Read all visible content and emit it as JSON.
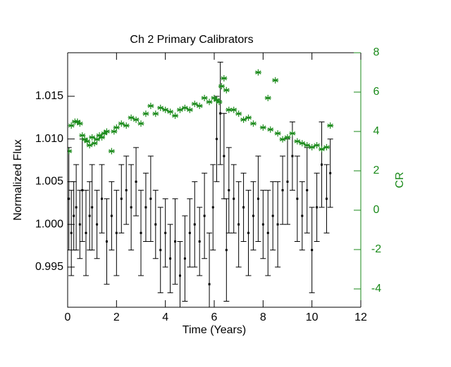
{
  "chart_data": {
    "type": "scatter",
    "title": "Ch 2 Primary Calibrators",
    "xlabel": "Time (Years)",
    "ylabel": "Normalized Flux",
    "y2label": "CR",
    "xlim": [
      0,
      12
    ],
    "xticks": [
      0,
      2,
      4,
      6,
      8,
      10,
      12
    ],
    "ylim": [
      0.9903,
      1.0201
    ],
    "yticks": [
      0.995,
      {
        "value": 1,
        "label": "1.000"
      },
      1.005,
      {
        "value": 1.01,
        "label": "1.010"
      },
      1.015
    ],
    "y2lim": [
      -4.93,
      8
    ],
    "y2ticks": [
      -4,
      -2,
      0,
      2,
      4,
      6,
      8
    ],
    "y2color": "#1a8a1a",
    "series": [
      {
        "color": "#000000",
        "marker": "dot",
        "x": [
          0.05,
          0.15,
          0.25,
          0.35,
          0.5,
          0.6,
          0.75,
          0.9,
          1.0,
          1.2,
          1.4,
          1.6,
          1.8,
          2.0,
          2.2,
          2.4,
          2.6,
          2.8,
          3.0,
          3.2,
          3.4,
          3.6,
          3.8,
          4.0,
          4.2,
          4.4,
          4.6,
          4.8,
          5.0,
          5.2,
          5.4,
          5.6,
          5.8,
          5.95,
          6.1,
          6.25,
          6.4,
          6.5,
          6.6,
          6.8,
          7.0,
          7.2,
          7.4,
          7.6,
          7.8,
          8.0,
          8.2,
          8.4,
          8.6,
          8.8,
          9.0,
          9.2,
          9.4,
          9.6,
          9.8,
          10.0,
          10.2,
          10.4,
          10.6,
          10.75
        ],
        "values": [
          1.003,
          0.999,
          1.001,
          1.002,
          1.0,
          1.004,
          0.999,
          1.001,
          1.002,
          1.0,
          1.003,
          0.998,
          1.001,
          0.999,
          1.003,
          1.004,
          1.002,
          1.005,
          0.999,
          1.002,
          1.003,
          1.0,
          0.997,
          0.999,
          0.996,
          0.998,
          0.994,
          0.996,
          0.999,
          1.0,
          0.998,
          1.001,
          0.993,
          1.002,
          1.01,
          1.013,
          1.008,
          0.997,
          1.004,
          1.003,
          1.0,
          1.002,
          0.999,
          1.001,
          1.003,
          1.0,
          0.999,
          1.001,
          1.0,
          1.004,
          1.005,
          1.008,
          1.003,
          1.001,
          1.004,
          0.997,
          1.002,
          1.007,
          1.003,
          1.006
        ],
        "errors": [
          0.006,
          0.005,
          0.004,
          0.005,
          0.004,
          0.006,
          0.005,
          0.004,
          0.005,
          0.004,
          0.004,
          0.005,
          0.004,
          0.005,
          0.004,
          0.004,
          0.005,
          0.004,
          0.005,
          0.004,
          0.005,
          0.004,
          0.005,
          0.004,
          0.004,
          0.005,
          0.004,
          0.005,
          0.004,
          0.005,
          0.004,
          0.005,
          0.006,
          0.005,
          0.005,
          0.006,
          0.005,
          0.006,
          0.005,
          0.004,
          0.005,
          0.004,
          0.005,
          0.004,
          0.005,
          0.004,
          0.005,
          0.004,
          0.005,
          0.004,
          0.005,
          0.004,
          0.005,
          0.004,
          0.005,
          0.005,
          0.004,
          0.005,
          0.004,
          0.004
        ]
      },
      {
        "color": "#1a8a1a",
        "marker": "star",
        "axis": "y2",
        "x": [
          0.05,
          0.15,
          0.3,
          0.4,
          0.5,
          0.6,
          0.7,
          0.8,
          0.9,
          1.0,
          1.1,
          1.2,
          1.3,
          1.4,
          1.5,
          1.6,
          1.8,
          1.9,
          2.0,
          2.2,
          2.4,
          2.6,
          2.8,
          3.0,
          3.2,
          3.4,
          3.6,
          3.8,
          4.0,
          4.2,
          4.4,
          4.6,
          4.8,
          5.0,
          5.2,
          5.4,
          5.6,
          5.8,
          6.0,
          6.1,
          6.2,
          6.3,
          6.4,
          6.5,
          6.6,
          6.8,
          7.0,
          7.2,
          7.4,
          7.6,
          7.8,
          8.0,
          8.2,
          8.3,
          8.5,
          8.6,
          8.8,
          9.0,
          9.2,
          9.4,
          9.6,
          9.8,
          10.0,
          10.2,
          10.4,
          10.6,
          10.75
        ],
        "values": [
          3,
          4.3,
          4.5,
          4.5,
          4.4,
          3.8,
          3.6,
          3.5,
          3.3,
          3.7,
          3.4,
          3.6,
          3.8,
          3.7,
          3.9,
          4.0,
          3.0,
          4.0,
          4.2,
          4.4,
          4.3,
          4.7,
          4.6,
          4.4,
          4.9,
          5.3,
          4.9,
          5.2,
          5.1,
          5.0,
          4.8,
          5.1,
          5.2,
          5.1,
          5.4,
          5.3,
          5.7,
          5.5,
          5.7,
          5.6,
          5.5,
          6.3,
          6.7,
          6.1,
          5.1,
          5.1,
          4.9,
          4.6,
          4.7,
          4.4,
          7.0,
          4.2,
          5.7,
          4.1,
          6.6,
          3.9,
          3.6,
          3.7,
          3.9,
          3.5,
          3.4,
          3.3,
          3.2,
          3.3,
          3.1,
          3.2,
          4.3
        ]
      }
    ]
  }
}
